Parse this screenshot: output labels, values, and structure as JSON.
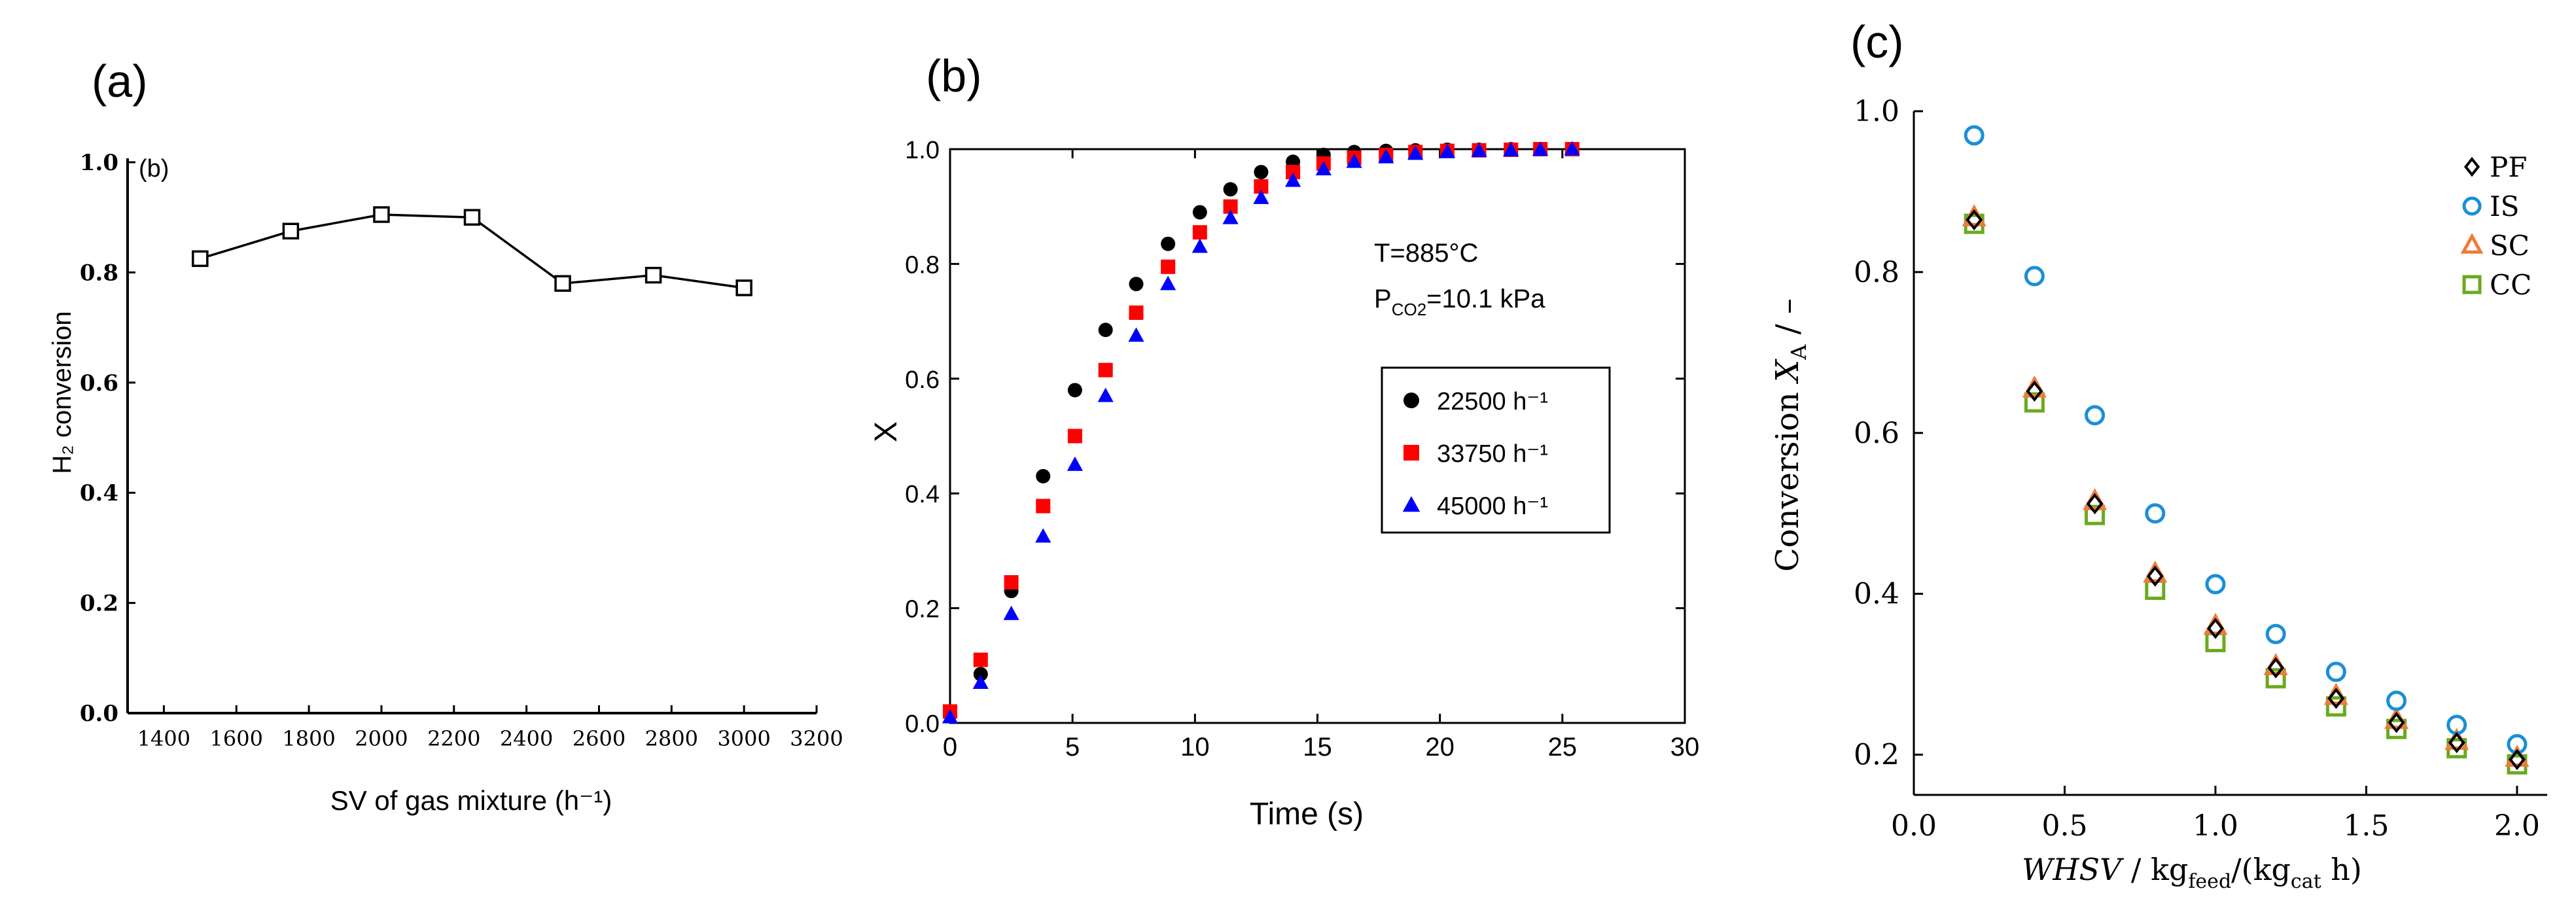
{
  "panels": [
    {
      "id": "a",
      "panel_label": "(a)",
      "inner_label": "(b)",
      "chart_data": {
        "type": "line",
        "title": "",
        "xlabel": "SV of gas mixture (h⁻¹)",
        "ylabel": "H₂ conversion",
        "xlim": [
          1300,
          3200
        ],
        "ylim": [
          0.0,
          1.0
        ],
        "xticks": [
          "1400",
          "1600",
          "1800",
          "2000",
          "2200",
          "2400",
          "2600",
          "2800",
          "3000",
          "3200"
        ],
        "yticks": [
          "0.0",
          "0.2",
          "0.4",
          "0.6",
          "0.8",
          "1.0"
        ],
        "series": [
          {
            "name": "H2 conversion",
            "marker": "open-square",
            "color": "#000000",
            "x": [
              1500,
              1750,
              2000,
              2250,
              2500,
              2750,
              3000
            ],
            "values": [
              0.825,
              0.875,
              0.905,
              0.9,
              0.78,
              0.795,
              0.772
            ]
          }
        ]
      }
    },
    {
      "id": "b",
      "panel_label": "(b)",
      "chart_data": {
        "type": "scatter",
        "title": "",
        "xlabel": "Time (s)",
        "ylabel": "X",
        "xlim": [
          0,
          30
        ],
        "ylim": [
          0.0,
          1.0
        ],
        "xticks": [
          "0",
          "5",
          "10",
          "15",
          "20",
          "25",
          "30"
        ],
        "yticks": [
          "0.0",
          "0.2",
          "0.4",
          "0.6",
          "0.8",
          "1.0"
        ],
        "annotations": [
          "T=885°C",
          "P",
          "CO2",
          "=10.1 kPa"
        ],
        "legend_position": "middle-right",
        "series": [
          {
            "name": "22500 h⁻¹",
            "marker": "circle",
            "color": "#000000",
            "x": [
              0,
              1.25,
              2.5,
              3.8,
              5.1,
              6.35,
              7.6,
              8.9,
              10.2,
              11.45,
              12.7,
              14,
              15.25,
              16.5,
              17.8,
              19,
              20.3,
              21.6,
              22.9,
              24.1,
              25.4
            ],
            "values": [
              0.02,
              0.085,
              0.23,
              0.43,
              0.58,
              0.685,
              0.765,
              0.835,
              0.89,
              0.93,
              0.96,
              0.978,
              0.99,
              0.995,
              0.997,
              0.998,
              0.999,
              0.999,
              1.0,
              1.0,
              1.0
            ]
          },
          {
            "name": "33750 h⁻¹",
            "marker": "square",
            "color": "#ff0000",
            "x": [
              0,
              1.25,
              2.5,
              3.8,
              5.1,
              6.35,
              7.6,
              8.9,
              10.2,
              11.45,
              12.7,
              14,
              15.25,
              16.5,
              17.8,
              19,
              20.3,
              21.6,
              22.9,
              24.1,
              25.4
            ],
            "values": [
              0.02,
              0.11,
              0.245,
              0.378,
              0.5,
              0.615,
              0.715,
              0.795,
              0.855,
              0.9,
              0.935,
              0.96,
              0.975,
              0.985,
              0.99,
              0.995,
              0.997,
              0.998,
              0.999,
              1.0,
              1.0
            ]
          },
          {
            "name": "45000 h⁻¹",
            "marker": "triangle",
            "color": "#0000ff",
            "x": [
              0,
              1.25,
              2.5,
              3.8,
              5.1,
              6.35,
              7.6,
              8.9,
              10.2,
              11.45,
              12.7,
              14,
              15.25,
              16.5,
              17.8,
              19,
              20.3,
              21.6,
              22.9,
              24.1,
              25.4
            ],
            "values": [
              0.01,
              0.07,
              0.19,
              0.325,
              0.45,
              0.57,
              0.675,
              0.765,
              0.83,
              0.88,
              0.915,
              0.945,
              0.965,
              0.978,
              0.986,
              0.992,
              0.995,
              0.997,
              0.998,
              0.999,
              1.0
            ]
          }
        ]
      }
    },
    {
      "id": "c",
      "panel_label": "(c)",
      "chart_data": {
        "type": "scatter",
        "title": "",
        "xlabel_parts": [
          "WHSV",
          " / kg",
          "feed",
          "/(kg",
          "cat",
          " h)"
        ],
        "ylabel_parts": [
          "Conversion ",
          "X",
          "A",
          " / –"
        ],
        "xlim": [
          0.0,
          2.1
        ],
        "ylim": [
          0.15,
          1.0
        ],
        "xticks": [
          "0.0",
          "0.5",
          "1.0",
          "1.5",
          "2.0"
        ],
        "yticks": [
          "0.2",
          "0.4",
          "0.6",
          "0.8",
          "1.0"
        ],
        "legend_position": "top-right",
        "series": [
          {
            "name": "PF",
            "marker": "diamond",
            "color": "#000000",
            "x": [
              0.2,
              0.4,
              0.6,
              0.8,
              1.0,
              1.2,
              1.4,
              1.6,
              1.8,
              2.0
            ],
            "values": [
              0.865,
              0.652,
              0.512,
              0.422,
              0.357,
              0.308,
              0.27,
              0.24,
              0.215,
              0.194
            ]
          },
          {
            "name": "IS",
            "marker": "open-circle",
            "color": "#1a8fd6",
            "x": [
              0.2,
              0.4,
              0.6,
              0.8,
              1.0,
              1.2,
              1.4,
              1.6,
              1.8,
              2.0
            ],
            "values": [
              0.97,
              0.795,
              0.622,
              0.5,
              0.412,
              0.35,
              0.303,
              0.267,
              0.237,
              0.213
            ]
          },
          {
            "name": "SC",
            "marker": "open-triangle",
            "color": "#f07a3a",
            "x": [
              0.2,
              0.4,
              0.6,
              0.8,
              1.0,
              1.2,
              1.4,
              1.6,
              1.8,
              2.0
            ],
            "values": [
              0.868,
              0.655,
              0.515,
              0.425,
              0.36,
              0.31,
              0.273,
              0.243,
              0.217,
              0.196
            ]
          },
          {
            "name": "CC",
            "marker": "open-square",
            "color": "#6aaa1e",
            "x": [
              0.2,
              0.4,
              0.6,
              0.8,
              1.0,
              1.2,
              1.4,
              1.6,
              1.8,
              2.0
            ],
            "values": [
              0.86,
              0.638,
              0.498,
              0.405,
              0.34,
              0.295,
              0.26,
              0.232,
              0.208,
              0.188
            ]
          }
        ]
      }
    }
  ]
}
